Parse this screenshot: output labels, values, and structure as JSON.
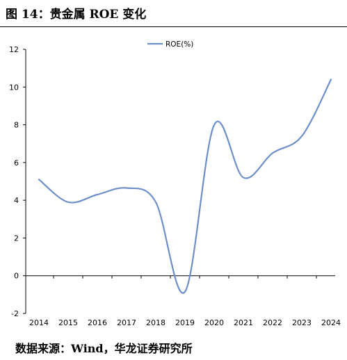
{
  "figure": {
    "title": "图 14：贵金属 ROE 变化",
    "source": "数据来源：Wind，华龙证券研究所"
  },
  "chart_data": {
    "type": "line",
    "x": [
      "2014",
      "2015",
      "2016",
      "2017",
      "2018",
      "2019",
      "2020",
      "2021",
      "2022",
      "2023",
      "2024"
    ],
    "series": [
      {
        "name": "ROE(%)",
        "color": "#6d8fc9",
        "values": [
          5.1,
          3.9,
          4.3,
          4.65,
          3.9,
          -0.85,
          8.0,
          5.2,
          6.5,
          7.4,
          10.4
        ]
      }
    ],
    "ylim": [
      -2,
      12
    ],
    "yticks": [
      "-2",
      "0",
      "2",
      "4",
      "6",
      "8",
      "10",
      "12"
    ],
    "grid": false,
    "legend": "top-center",
    "title": "",
    "xlabel": "",
    "ylabel": ""
  }
}
